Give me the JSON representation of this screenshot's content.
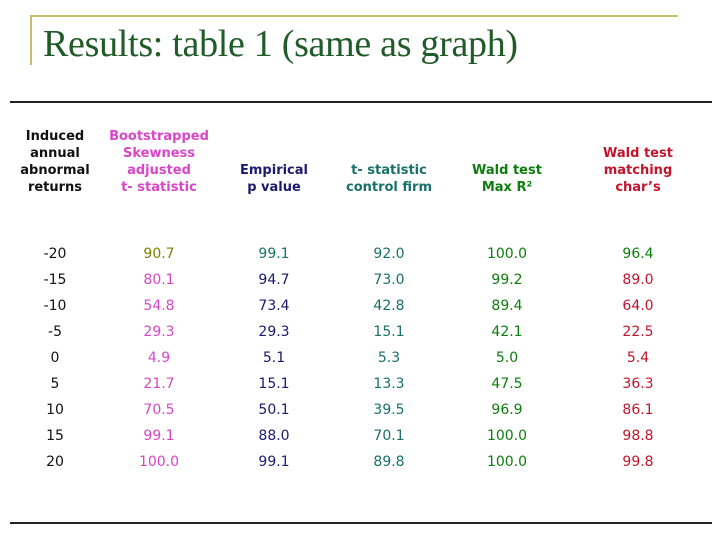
{
  "slide": {
    "title": "Results: table 1 (same as graph)"
  },
  "table": {
    "headers": [
      {
        "lines": [
          "Induced",
          "annual",
          "abnormal",
          "returns"
        ]
      },
      {
        "lines": [
          "Bootstrapped",
          "Skewness",
          "adjusted",
          "t- statistic"
        ]
      },
      {
        "lines": [
          "Empirical",
          "p value"
        ]
      },
      {
        "lines": [
          "t- statistic",
          "control firm"
        ]
      },
      {
        "lines": [
          "Wald test",
          "Max R²"
        ]
      },
      {
        "lines": [
          "Wald test",
          "matching",
          "char’s"
        ]
      }
    ],
    "rows": [
      [
        "-20",
        "90.7",
        "99.1",
        "92.0",
        "100.0",
        "96.4"
      ],
      [
        "-15",
        "80.1",
        "94.7",
        "73.0",
        "99.2",
        "89.0"
      ],
      [
        "-10",
        "54.8",
        "73.4",
        "42.8",
        "89.4",
        "64.0"
      ],
      [
        "-5",
        "29.3",
        "29.3",
        "15.1",
        "42.1",
        "22.5"
      ],
      [
        "0",
        "4.9",
        "5.1",
        "5.3",
        "5.0",
        "5.4"
      ],
      [
        "5",
        "21.7",
        "15.1",
        "13.3",
        "47.5",
        "36.3"
      ],
      [
        "10",
        "70.5",
        "50.1",
        "39.5",
        "96.9",
        "86.1"
      ],
      [
        "15",
        "99.1",
        "88.0",
        "70.1",
        "100.0",
        "98.8"
      ],
      [
        "20",
        "100.0",
        "99.1",
        "89.8",
        "100.0",
        "99.8"
      ]
    ]
  },
  "colors": {
    "title": "#215b2a",
    "frame": "#c9c06a",
    "column_colors": [
      "#111111",
      "#d946c9",
      "#1a1a70",
      "#19706a",
      "#0d7d0d",
      "#c4142c"
    ],
    "row_colors": [
      [
        "#111111",
        "#7f7f00",
        "#19706a",
        "#19706a",
        "#0d7d0d",
        "#0d7d0d"
      ]
    ]
  }
}
